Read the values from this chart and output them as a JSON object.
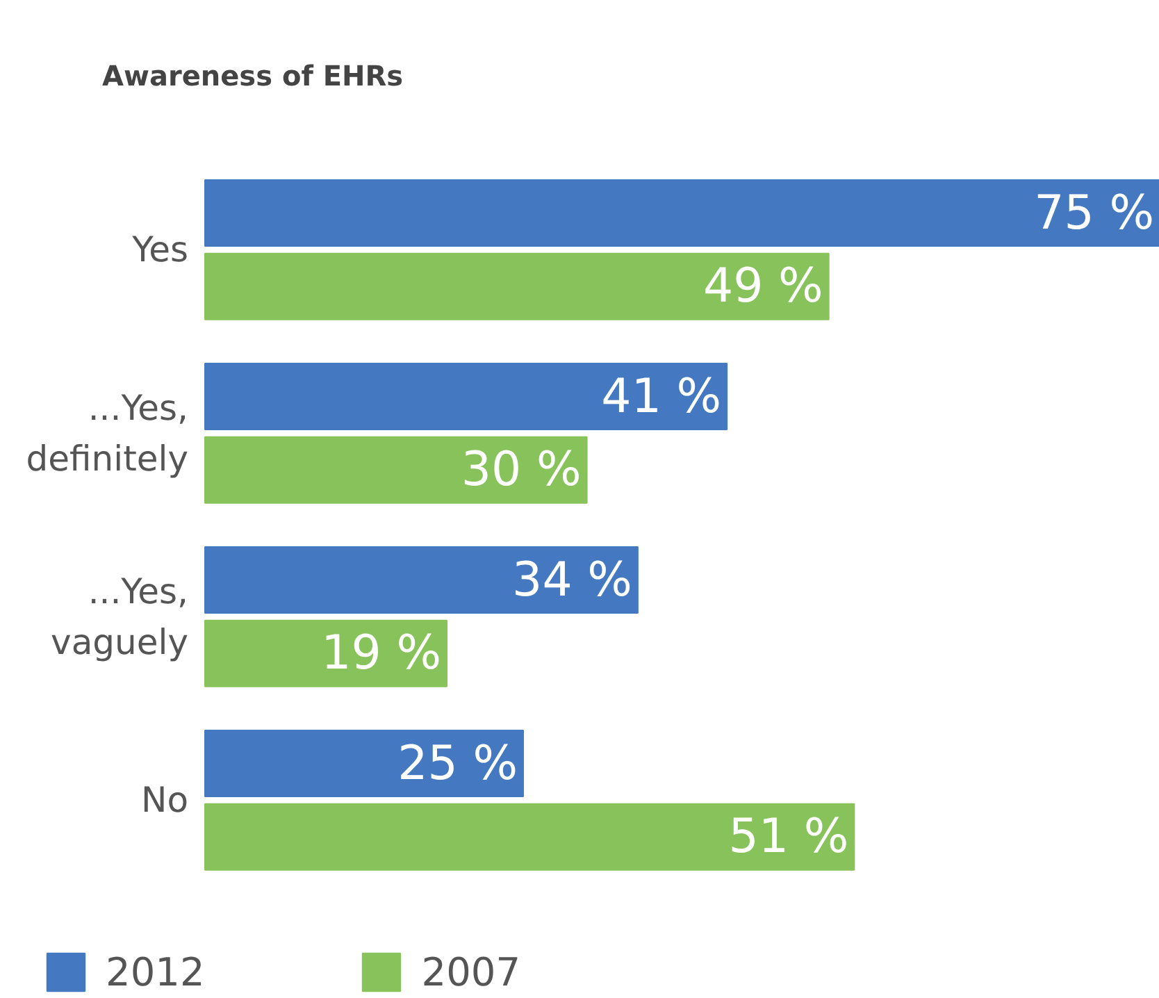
{
  "chart_data": {
    "type": "bar",
    "orientation": "horizontal",
    "title": "Awareness of EHRs",
    "categories": [
      "Yes",
      "...Yes, definitely",
      "...Yes, vaguely",
      "No"
    ],
    "series": [
      {
        "name": "2012",
        "color": "#4479c1",
        "values": [
          75,
          41,
          34,
          25
        ],
        "value_labels": [
          "75 %",
          "41 %",
          "34 %",
          "25 %"
        ]
      },
      {
        "name": "2007",
        "color": "#88c25a",
        "values": [
          49,
          30,
          19,
          51
        ],
        "value_labels": [
          "49 %",
          "30 %",
          "19 %",
          "51 %"
        ]
      }
    ],
    "legend": "bottom left",
    "grid": false
  }
}
